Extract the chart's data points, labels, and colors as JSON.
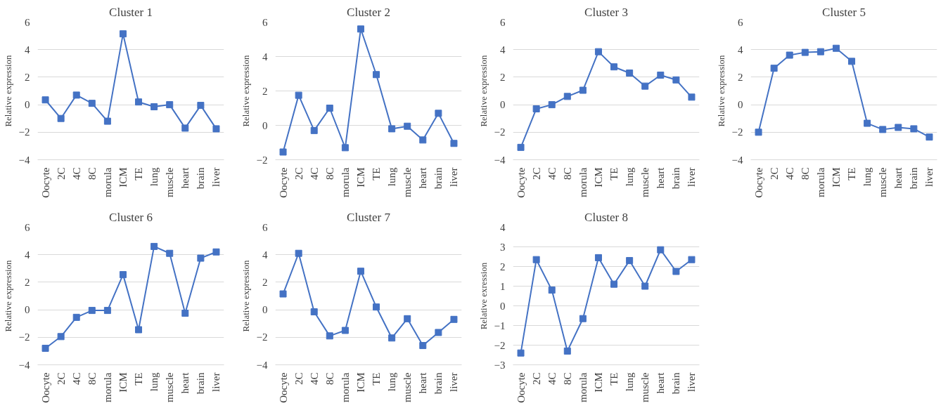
{
  "chart_data": [
    {
      "type": "line",
      "title": "Cluster 1",
      "ylabel": "Relative expression",
      "categories": [
        "Oocyte",
        "2C",
        "4C",
        "8C",
        "morula",
        "ICM",
        "TE",
        "lung",
        "muscle",
        "heart",
        "brain",
        "liver"
      ],
      "series": [
        {
          "color": "#4472c4",
          "values": [
            0.35,
            -1.0,
            0.7,
            0.1,
            -1.2,
            5.15,
            0.2,
            -0.15,
            0.0,
            -1.7,
            -0.05,
            -1.75
          ]
        }
      ],
      "ylim": [
        -4,
        6
      ],
      "yticks": [
        -4,
        -2,
        0,
        2,
        4,
        6
      ],
      "grid": "y",
      "marker": "square"
    },
    {
      "type": "line",
      "title": "Cluster 2",
      "ylabel": "Relative expression",
      "categories": [
        "Oocyte",
        "2C",
        "4C",
        "8C",
        "morula",
        "ICM",
        "TE",
        "lung",
        "muscle",
        "heart",
        "brain",
        "liver"
      ],
      "series": [
        {
          "color": "#4472c4",
          "values": [
            -1.55,
            1.75,
            -0.3,
            1.0,
            -1.3,
            5.6,
            2.95,
            -0.2,
            -0.05,
            -0.85,
            0.7,
            -1.05
          ]
        }
      ],
      "ylim": [
        -2,
        6
      ],
      "yticks": [
        -2,
        0,
        2,
        4,
        6
      ],
      "grid": "y",
      "marker": "square"
    },
    {
      "type": "line",
      "title": "Cluster 3",
      "ylabel": "Relative expression",
      "categories": [
        "Oocyte",
        "2C",
        "4C",
        "8C",
        "morula",
        "ICM",
        "TE",
        "lung",
        "muscle",
        "heart",
        "brain",
        "liver"
      ],
      "series": [
        {
          "color": "#4472c4",
          "values": [
            -3.1,
            -0.3,
            0.0,
            0.6,
            1.05,
            3.85,
            2.75,
            2.3,
            1.35,
            2.15,
            1.8,
            0.55
          ]
        }
      ],
      "ylim": [
        -4,
        6
      ],
      "yticks": [
        -4,
        -2,
        0,
        2,
        4,
        6
      ],
      "grid": "y",
      "marker": "square"
    },
    {
      "type": "line",
      "title": "Cluster 5",
      "ylabel": "Relative expression",
      "categories": [
        "Oocyte",
        "2C",
        "4C",
        "8C",
        "morula",
        "ICM",
        "TE",
        "lung",
        "muscle",
        "heart",
        "brain",
        "liver"
      ],
      "series": [
        {
          "color": "#4472c4",
          "values": [
            -2.0,
            2.65,
            3.6,
            3.8,
            3.85,
            4.1,
            3.15,
            -1.35,
            -1.8,
            -1.65,
            -1.75,
            -2.35
          ]
        }
      ],
      "ylim": [
        -4,
        6
      ],
      "yticks": [
        -4,
        -2,
        0,
        2,
        4,
        6
      ],
      "grid": "y",
      "marker": "square"
    },
    {
      "type": "line",
      "title": "Cluster 6",
      "ylabel": "Relative expression",
      "categories": [
        "Oocyte",
        "2C",
        "4C",
        "8C",
        "morula",
        "ICM",
        "TE",
        "lung",
        "muscle",
        "heart",
        "brain",
        "liver"
      ],
      "series": [
        {
          "color": "#4472c4",
          "values": [
            -2.8,
            -1.95,
            -0.55,
            -0.05,
            -0.05,
            2.55,
            -1.45,
            4.6,
            4.1,
            -0.25,
            3.75,
            4.2
          ]
        }
      ],
      "ylim": [
        -4,
        6
      ],
      "yticks": [
        -4,
        -2,
        0,
        2,
        4,
        6
      ],
      "grid": "y",
      "marker": "square"
    },
    {
      "type": "line",
      "title": "Cluster 7",
      "ylabel": "Relative expression",
      "categories": [
        "Oocyte",
        "2C",
        "4C",
        "8C",
        "morula",
        "ICM",
        "TE",
        "lung",
        "muscle",
        "heart",
        "brain",
        "liver"
      ],
      "series": [
        {
          "color": "#4472c4",
          "values": [
            1.15,
            4.1,
            -0.15,
            -1.9,
            -1.5,
            2.8,
            0.2,
            -2.05,
            -0.65,
            -2.6,
            -1.65,
            -0.7
          ]
        }
      ],
      "ylim": [
        -4,
        6
      ],
      "yticks": [
        -4,
        -2,
        0,
        2,
        4,
        6
      ],
      "grid": "y",
      "marker": "square"
    },
    {
      "type": "line",
      "title": "Cluster 8",
      "ylabel": "Relative exression",
      "categories": [
        "Oocyte",
        "2C",
        "4C",
        "8C",
        "morula",
        "ICM",
        "TE",
        "lung",
        "muscle",
        "heart",
        "brain",
        "liver"
      ],
      "series": [
        {
          "color": "#4472c4",
          "values": [
            -2.4,
            2.35,
            0.8,
            -2.3,
            -0.65,
            2.45,
            1.1,
            2.3,
            1.0,
            2.85,
            1.75,
            2.35
          ]
        }
      ],
      "ylim": [
        -3,
        4
      ],
      "yticks": [
        -3,
        -2,
        -1,
        0,
        1,
        2,
        3,
        4
      ],
      "grid": "y",
      "marker": "square"
    }
  ]
}
